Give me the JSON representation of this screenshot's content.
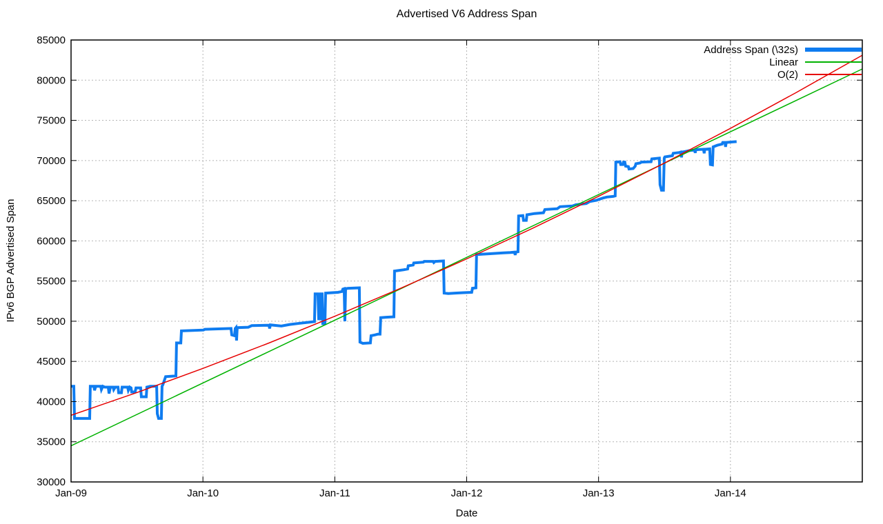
{
  "chart_data": {
    "type": "line",
    "title": "Advertised V6 Address Span",
    "xlabel": "Date",
    "ylabel": "IPv6 BGP Advertised Span",
    "xlim": [
      2009,
      2015
    ],
    "ylim": [
      30000,
      85000
    ],
    "grid": true,
    "legend_position": "top-right-inside",
    "colors": {
      "address_span": "#0f7cf0",
      "linear": "#00b200",
      "o2": "#e60000",
      "grid": "#b4b4b4"
    },
    "xticks": [
      {
        "v": 2009,
        "label": "Jan-09"
      },
      {
        "v": 2010,
        "label": "Jan-10"
      },
      {
        "v": 2011,
        "label": "Jan-11"
      },
      {
        "v": 2012,
        "label": "Jan-12"
      },
      {
        "v": 2013,
        "label": "Jan-13"
      },
      {
        "v": 2014,
        "label": "Jan-14"
      }
    ],
    "yticks": [
      30000,
      35000,
      40000,
      45000,
      50000,
      55000,
      60000,
      65000,
      70000,
      75000,
      80000,
      85000
    ],
    "series": [
      {
        "name": "Address Span (\\32s)",
        "color": "#0f7cf0",
        "width": 4,
        "points": [
          [
            2009.0,
            41900
          ],
          [
            2009.021,
            41900
          ],
          [
            2009.026,
            37900
          ],
          [
            2009.141,
            37900
          ],
          [
            2009.146,
            41900
          ],
          [
            2009.173,
            41900
          ],
          [
            2009.178,
            41400
          ],
          [
            2009.188,
            41900
          ],
          [
            2009.225,
            41900
          ],
          [
            2009.23,
            41500
          ],
          [
            2009.241,
            41900
          ],
          [
            2009.256,
            41800
          ],
          [
            2009.282,
            41800
          ],
          [
            2009.288,
            41000
          ],
          [
            2009.298,
            41800
          ],
          [
            2009.319,
            41800
          ],
          [
            2009.324,
            41500
          ],
          [
            2009.335,
            41800
          ],
          [
            2009.356,
            41800
          ],
          [
            2009.361,
            41100
          ],
          [
            2009.382,
            41100
          ],
          [
            2009.387,
            41800
          ],
          [
            2009.429,
            41800
          ],
          [
            2009.434,
            41400
          ],
          [
            2009.445,
            41800
          ],
          [
            2009.455,
            41700
          ],
          [
            2009.46,
            41200
          ],
          [
            2009.486,
            41200
          ],
          [
            2009.492,
            41700
          ],
          [
            2009.528,
            41700
          ],
          [
            2009.533,
            40600
          ],
          [
            2009.57,
            40600
          ],
          [
            2009.575,
            41800
          ],
          [
            2009.601,
            41900
          ],
          [
            2009.649,
            41900
          ],
          [
            2009.654,
            38500
          ],
          [
            2009.664,
            37900
          ],
          [
            2009.685,
            37900
          ],
          [
            2009.69,
            41900
          ],
          [
            2009.696,
            42100
          ],
          [
            2009.717,
            43100
          ],
          [
            2009.795,
            43200
          ],
          [
            2009.8,
            47300
          ],
          [
            2009.832,
            47300
          ],
          [
            2009.837,
            48800
          ],
          [
            2010.004,
            48900
          ],
          [
            2010.015,
            49000
          ],
          [
            2010.213,
            49100
          ],
          [
            2010.219,
            48300
          ],
          [
            2010.24,
            48200
          ],
          [
            2010.245,
            49100
          ],
          [
            2010.25,
            49200
          ],
          [
            2010.255,
            47600
          ],
          [
            2010.26,
            49200
          ],
          [
            2010.344,
            49250
          ],
          [
            2010.37,
            49450
          ],
          [
            2010.501,
            49500
          ],
          [
            2010.506,
            49100
          ],
          [
            2010.511,
            49550
          ],
          [
            2010.595,
            49400
          ],
          [
            2010.658,
            49600
          ],
          [
            2010.736,
            49750
          ],
          [
            2010.815,
            49900
          ],
          [
            2010.846,
            49950
          ],
          [
            2010.851,
            53400
          ],
          [
            2010.872,
            53400
          ],
          [
            2010.878,
            50300
          ],
          [
            2010.888,
            50300
          ],
          [
            2010.893,
            53400
          ],
          [
            2010.904,
            53400
          ],
          [
            2010.909,
            49700
          ],
          [
            2010.925,
            49700
          ],
          [
            2010.93,
            53500
          ],
          [
            2011.024,
            53600
          ],
          [
            2011.055,
            53700
          ],
          [
            2011.061,
            54000
          ],
          [
            2011.071,
            54050
          ],
          [
            2011.076,
            50000
          ],
          [
            2011.082,
            54050
          ],
          [
            2011.102,
            54100
          ],
          [
            2011.186,
            54150
          ],
          [
            2011.191,
            47400
          ],
          [
            2011.212,
            47250
          ],
          [
            2011.27,
            47300
          ],
          [
            2011.275,
            48200
          ],
          [
            2011.306,
            48300
          ],
          [
            2011.327,
            48400
          ],
          [
            2011.343,
            48400
          ],
          [
            2011.348,
            50450
          ],
          [
            2011.39,
            50500
          ],
          [
            2011.448,
            50550
          ],
          [
            2011.453,
            56250
          ],
          [
            2011.521,
            56400
          ],
          [
            2011.552,
            56500
          ],
          [
            2011.557,
            56900
          ],
          [
            2011.594,
            57000
          ],
          [
            2011.599,
            57250
          ],
          [
            2011.672,
            57350
          ],
          [
            2011.678,
            57450
          ],
          [
            2011.746,
            57450
          ],
          [
            2011.751,
            57300
          ],
          [
            2011.761,
            57450
          ],
          [
            2011.824,
            57500
          ],
          [
            2011.829,
            53500
          ],
          [
            2011.861,
            53450
          ],
          [
            2011.913,
            53500
          ],
          [
            2011.976,
            53550
          ],
          [
            2012.038,
            53600
          ],
          [
            2012.044,
            54100
          ],
          [
            2012.07,
            54150
          ],
          [
            2012.075,
            58300
          ],
          [
            2012.122,
            58350
          ],
          [
            2012.175,
            58400
          ],
          [
            2012.227,
            58450
          ],
          [
            2012.279,
            58500
          ],
          [
            2012.331,
            58550
          ],
          [
            2012.363,
            58600
          ],
          [
            2012.368,
            58250
          ],
          [
            2012.373,
            58600
          ],
          [
            2012.389,
            58650
          ],
          [
            2012.394,
            63100
          ],
          [
            2012.426,
            63150
          ],
          [
            2012.431,
            62550
          ],
          [
            2012.452,
            62550
          ],
          [
            2012.457,
            63250
          ],
          [
            2012.514,
            63400
          ],
          [
            2012.582,
            63500
          ],
          [
            2012.593,
            63900
          ],
          [
            2012.687,
            64000
          ],
          [
            2012.708,
            64250
          ],
          [
            2012.802,
            64350
          ],
          [
            2012.828,
            64500
          ],
          [
            2012.907,
            64650
          ],
          [
            2012.933,
            64900
          ],
          [
            2012.985,
            65050
          ],
          [
            2013.001,
            65150
          ],
          [
            2013.037,
            65350
          ],
          [
            2013.063,
            65450
          ],
          [
            2013.116,
            65550
          ],
          [
            2013.126,
            65600
          ],
          [
            2013.131,
            69800
          ],
          [
            2013.163,
            69850
          ],
          [
            2013.168,
            69500
          ],
          [
            2013.184,
            69500
          ],
          [
            2013.189,
            69800
          ],
          [
            2013.199,
            69800
          ],
          [
            2013.205,
            69300
          ],
          [
            2013.226,
            69250
          ],
          [
            2013.231,
            68950
          ],
          [
            2013.262,
            69000
          ],
          [
            2013.278,
            69300
          ],
          [
            2013.283,
            69600
          ],
          [
            2013.315,
            69700
          ],
          [
            2013.325,
            69800
          ],
          [
            2013.398,
            69850
          ],
          [
            2013.404,
            70200
          ],
          [
            2013.461,
            70300
          ],
          [
            2013.466,
            67000
          ],
          [
            2013.477,
            66300
          ],
          [
            2013.492,
            66300
          ],
          [
            2013.498,
            70300
          ],
          [
            2013.503,
            70450
          ],
          [
            2013.56,
            70600
          ],
          [
            2013.566,
            70900
          ],
          [
            2013.613,
            71000
          ],
          [
            2013.623,
            71050
          ],
          [
            2013.629,
            70400
          ],
          [
            2013.634,
            71050
          ],
          [
            2013.665,
            71150
          ],
          [
            2013.691,
            71250
          ],
          [
            2013.728,
            71300
          ],
          [
            2013.733,
            70950
          ],
          [
            2013.738,
            71350
          ],
          [
            2013.796,
            71400
          ],
          [
            2013.801,
            70900
          ],
          [
            2013.806,
            71400
          ],
          [
            2013.843,
            71450
          ],
          [
            2013.848,
            69500
          ],
          [
            2013.864,
            69450
          ],
          [
            2013.869,
            71700
          ],
          [
            2013.9,
            71900
          ],
          [
            2013.937,
            72050
          ],
          [
            2013.942,
            72250
          ],
          [
            2013.958,
            72250
          ],
          [
            2013.963,
            71700
          ],
          [
            2013.968,
            72250
          ],
          [
            2014.005,
            72300
          ],
          [
            2014.047,
            72350
          ]
        ]
      },
      {
        "name": "Linear",
        "color": "#00b200",
        "width": 1.5,
        "points": [
          [
            2009.0,
            34500
          ],
          [
            2015.0,
            81400
          ]
        ]
      },
      {
        "name": "O(2)",
        "color": "#e60000",
        "width": 1.5,
        "points": [
          [
            2009.0,
            38300
          ],
          [
            2009.5,
            41130
          ],
          [
            2010.0,
            44130
          ],
          [
            2010.5,
            47290
          ],
          [
            2011.0,
            50620
          ],
          [
            2011.5,
            54100
          ],
          [
            2012.0,
            57760
          ],
          [
            2012.5,
            61570
          ],
          [
            2013.0,
            65550
          ],
          [
            2013.5,
            69690
          ],
          [
            2014.0,
            74000
          ],
          [
            2014.5,
            78470
          ],
          [
            2015.0,
            83100
          ]
        ]
      }
    ]
  },
  "legend": [
    {
      "label": "Address Span (\\32s)",
      "color": "#0f7cf0",
      "style": "thick"
    },
    {
      "label": "Linear",
      "color": "#00b200",
      "style": "thin"
    },
    {
      "label": "O(2)",
      "color": "#e60000",
      "style": "thin"
    }
  ]
}
